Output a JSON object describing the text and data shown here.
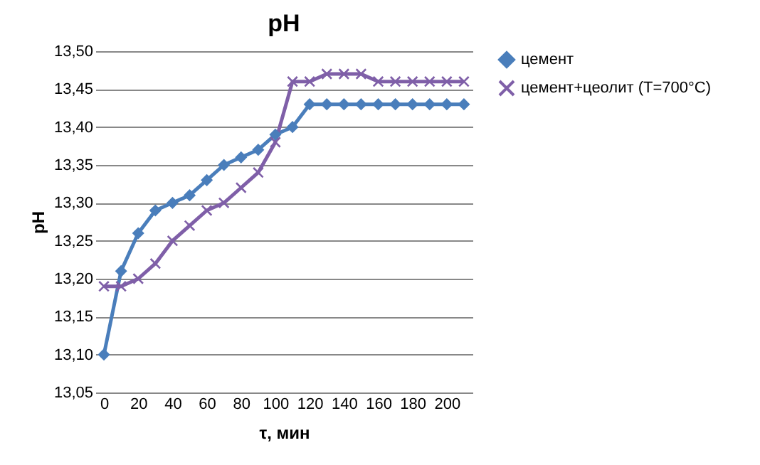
{
  "chart_data": {
    "type": "line",
    "title": "pH",
    "xlabel": "τ, мин",
    "ylabel": "pH",
    "x": [
      0,
      10,
      20,
      30,
      40,
      50,
      60,
      70,
      80,
      90,
      100,
      110,
      120,
      130,
      140,
      150,
      160,
      170,
      180,
      190,
      200,
      210
    ],
    "xlim": [
      -5,
      215
    ],
    "xticks": [
      0,
      20,
      40,
      60,
      80,
      100,
      120,
      140,
      160,
      180,
      200
    ],
    "ylim": [
      13.05,
      13.5
    ],
    "yticks": [
      {
        "value": 13.05,
        "label": "13,05"
      },
      {
        "value": 13.1,
        "label": "13,10"
      },
      {
        "value": 13.15,
        "label": "13,15"
      },
      {
        "value": 13.2,
        "label": "13,20"
      },
      {
        "value": 13.25,
        "label": "13,25"
      },
      {
        "value": 13.3,
        "label": "13,30"
      },
      {
        "value": 13.35,
        "label": "13,35"
      },
      {
        "value": 13.4,
        "label": "13,40"
      },
      {
        "value": 13.45,
        "label": "13,45"
      },
      {
        "value": 13.5,
        "label": "13,50"
      }
    ],
    "grid": "y",
    "legend": "right",
    "series": [
      {
        "name": "цемент",
        "color": "#4a7ebb",
        "marker": "diamond",
        "values": [
          13.1,
          13.21,
          13.26,
          13.29,
          13.3,
          13.31,
          13.33,
          13.35,
          13.36,
          13.37,
          13.39,
          13.4,
          13.43,
          13.43,
          13.43,
          13.43,
          13.43,
          13.43,
          13.43,
          13.43,
          13.43,
          13.43
        ]
      },
      {
        "name": "цемент+цеолит (T=700°C)",
        "color": "#7f5fa8",
        "marker": "cross",
        "values": [
          13.19,
          13.19,
          13.2,
          13.22,
          13.25,
          13.27,
          13.29,
          13.3,
          13.32,
          13.34,
          13.38,
          13.46,
          13.46,
          13.47,
          13.47,
          13.47,
          13.46,
          13.46,
          13.46,
          13.46,
          13.46,
          13.46
        ]
      }
    ]
  }
}
